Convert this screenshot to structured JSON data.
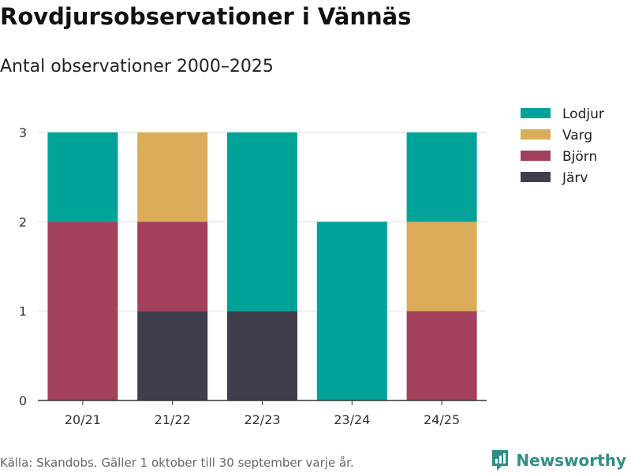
{
  "title": "Rovdjursobservationer i Vännäs",
  "subtitle": "Antal observationer 2000–2025",
  "source": "Källa: Skandobs. Gäller 1 oktober till 30 september varje år.",
  "brand": "Newsworthy",
  "chart_data": {
    "type": "bar",
    "stacked": true,
    "categories": [
      "20/21",
      "21/22",
      "22/23",
      "23/24",
      "24/25"
    ],
    "series": [
      {
        "name": "Järv",
        "color": "#403e4a",
        "values": [
          0,
          1,
          1,
          0,
          0
        ]
      },
      {
        "name": "Björn",
        "color": "#a3405c",
        "values": [
          2,
          1,
          0,
          0,
          1
        ]
      },
      {
        "name": "Varg",
        "color": "#dbac5a",
        "values": [
          0,
          1,
          0,
          0,
          1
        ]
      },
      {
        "name": "Lodjur",
        "color": "#00a398",
        "values": [
          1,
          0,
          2,
          2,
          1
        ]
      }
    ],
    "legend_order": [
      "Lodjur",
      "Varg",
      "Björn",
      "Järv"
    ],
    "ylim": [
      0,
      3
    ],
    "yticks": [
      0,
      1,
      2,
      3
    ],
    "grid": true,
    "legend_position": "right"
  }
}
